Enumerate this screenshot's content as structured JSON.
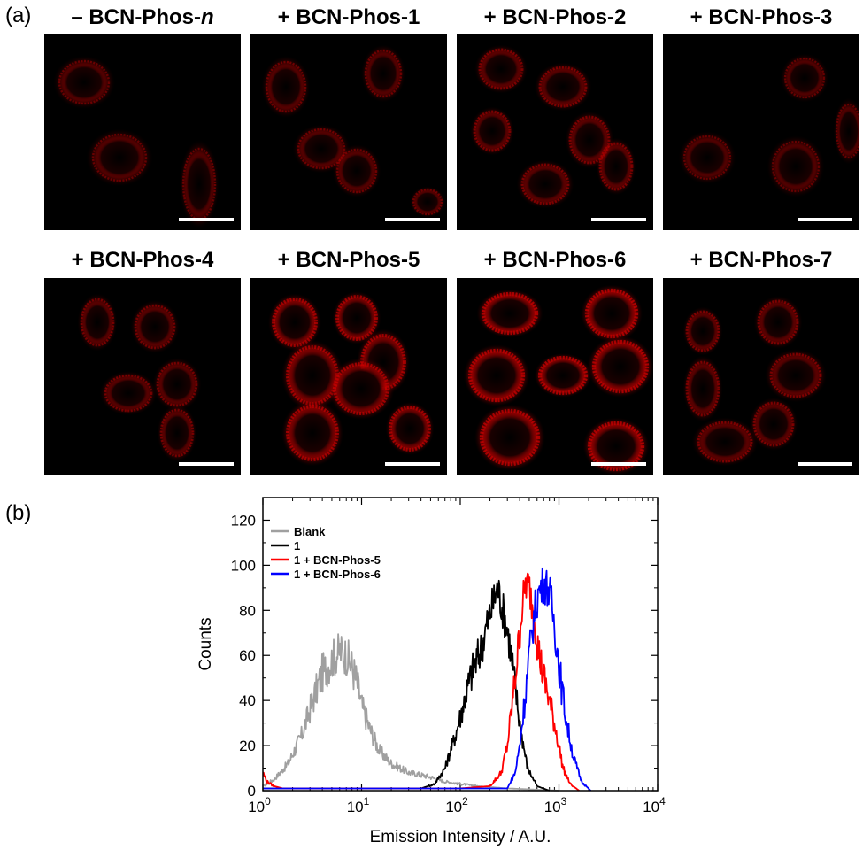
{
  "panel_labels": {
    "a": "(a)",
    "b": "(b)"
  },
  "micrographs": [
    {
      "label_prefix": "– BCN-Phos-",
      "label_suffix": "n",
      "brightness": 0.3
    },
    {
      "label_prefix": "+ BCN-Phos-1",
      "label_suffix": "",
      "brightness": 0.35
    },
    {
      "label_prefix": "+ BCN-Phos-2",
      "label_suffix": "",
      "brightness": 0.45
    },
    {
      "label_prefix": "+ BCN-Phos-3",
      "label_suffix": "",
      "brightness": 0.28
    },
    {
      "label_prefix": "+ BCN-Phos-4",
      "label_suffix": "",
      "brightness": 0.4
    },
    {
      "label_prefix": "+ BCN-Phos-5",
      "label_suffix": "",
      "brightness": 0.8
    },
    {
      "label_prefix": "+ BCN-Phos-6",
      "label_suffix": "",
      "brightness": 0.95
    },
    {
      "label_prefix": "+ BCN-Phos-7",
      "label_suffix": "",
      "brightness": 0.45
    }
  ],
  "chart_data": {
    "type": "line",
    "title": "",
    "xlabel": "Emission Intensity / A.U.",
    "ylabel": "Counts",
    "x_scale": "log",
    "xlim": [
      1,
      10000
    ],
    "ylim": [
      0,
      130
    ],
    "x_ticks": [
      1,
      10,
      100,
      1000,
      10000
    ],
    "x_tick_labels": [
      {
        "base": "10",
        "exp": "0"
      },
      {
        "base": "10",
        "exp": "1"
      },
      {
        "base": "10",
        "exp": "2"
      },
      {
        "base": "10",
        "exp": "3"
      },
      {
        "base": "10",
        "exp": "4"
      }
    ],
    "y_ticks": [
      0,
      20,
      40,
      60,
      80,
      100,
      120
    ],
    "legend_position": "top-left",
    "series": [
      {
        "name": "Blank",
        "color": "#a0a0a0",
        "x": [
          1,
          1.3,
          1.8,
          2.5,
          3.2,
          4,
          5,
          6,
          7,
          8,
          9,
          10,
          12,
          15,
          20,
          30,
          40,
          50,
          70,
          100,
          150,
          300,
          1000
        ],
        "y": [
          2,
          5,
          12,
          25,
          40,
          52,
          58,
          62,
          60,
          55,
          48,
          38,
          28,
          18,
          12,
          8,
          7,
          6,
          4,
          3,
          2,
          1,
          0
        ]
      },
      {
        "name": "1",
        "color": "#000000",
        "x": [
          1,
          40,
          55,
          70,
          90,
          110,
          130,
          160,
          190,
          220,
          240,
          270,
          300,
          340,
          400,
          480,
          600,
          800
        ],
        "y": [
          1,
          1,
          3,
          10,
          25,
          40,
          52,
          62,
          75,
          85,
          90,
          80,
          72,
          55,
          30,
          10,
          2,
          0
        ]
      },
      {
        "name": "1 + BCN-Phos-5",
        "color": "#ff0000",
        "x": [
          1,
          1.1,
          1.3,
          1.6,
          2,
          10,
          100,
          200,
          260,
          300,
          340,
          380,
          420,
          460,
          500,
          560,
          620,
          700,
          800,
          950,
          1100,
          1300,
          1600
        ],
        "y": [
          8,
          4,
          2,
          1,
          1,
          1,
          1,
          2,
          8,
          20,
          40,
          60,
          80,
          92,
          90,
          78,
          62,
          50,
          40,
          25,
          10,
          3,
          0
        ]
      },
      {
        "name": "1 + BCN-Phos-6",
        "color": "#0000ff",
        "x": [
          1,
          100,
          300,
          360,
          400,
          450,
          500,
          560,
          620,
          700,
          780,
          850,
          950,
          1050,
          1200,
          1400,
          1700,
          2100
        ],
        "y": [
          1,
          1,
          1,
          8,
          20,
          40,
          60,
          78,
          88,
          92,
          90,
          82,
          65,
          48,
          30,
          15,
          4,
          0
        ]
      }
    ]
  }
}
